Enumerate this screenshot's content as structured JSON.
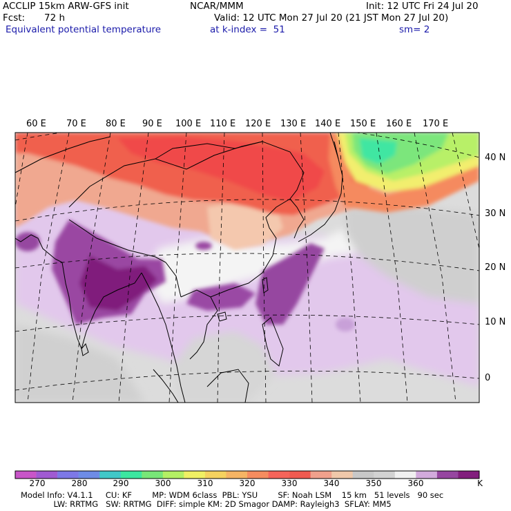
{
  "header": {
    "model": "ACCLIP 15km ARW-GFS init",
    "org": "NCAR/MMM",
    "init": "Init: 12 UTC Fri 24 Jul 20",
    "fcst_label": "Fcst:",
    "fcst_value": "72 h",
    "valid": "Valid: 12 UTC Mon 27 Jul 20 (21 JST Mon 27 Jul 20)",
    "field": "Equivalent potential temperature",
    "level": "at k-index =  51",
    "smooth": "sm= 2"
  },
  "map": {
    "lon_labels": [
      "60 E",
      "70 E",
      "80 E",
      "90 E",
      "100 E",
      "110 E",
      "120 E",
      "130 E",
      "140 E",
      "150 E",
      "160 E",
      "170 E"
    ],
    "lat_labels": [
      "40 N",
      "30 N",
      "20 N",
      "10 N",
      "0"
    ]
  },
  "colorbar": {
    "unit": "K",
    "tick_labels": [
      "270",
      "280",
      "290",
      "300",
      "310",
      "320",
      "330",
      "340",
      "350",
      "360"
    ],
    "colors": [
      "#c855c8",
      "#a05ad2",
      "#7d78e6",
      "#6e8ce6",
      "#41c8c8",
      "#3ce6a0",
      "#78e678",
      "#b4f064",
      "#f0f064",
      "#f5d25f",
      "#f5b464",
      "#f58c5f",
      "#f5645a",
      "#f05a50",
      "#f0a08c",
      "#f0c8aa",
      "#c8c8c8",
      "#d2d2d2",
      "#f0f0f0",
      "#d2aadc",
      "#9646a0",
      "#821e7d"
    ]
  },
  "footer": {
    "line1": "Model Info: V4.1.1     CU: KF        MP: WDM 6class  PBL: YSU        SF: Noah LSM    15 km   51 levels   90 sec",
    "line2": "             LW: RRTMG   SW: RRTMG  DIFF: simple KM: 2D Smagor DAMP: Rayleigh3  SFLAY: MM5"
  }
}
